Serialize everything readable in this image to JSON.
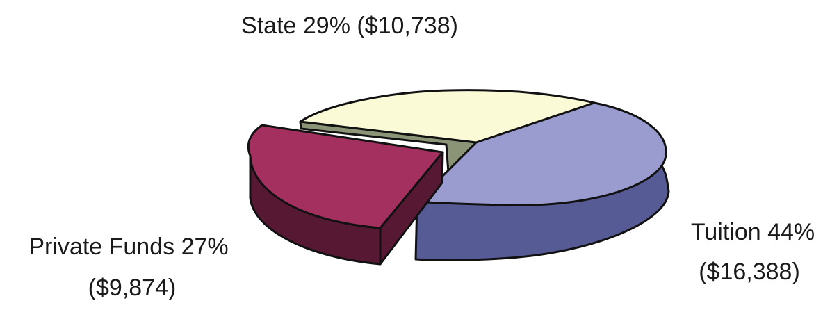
{
  "chart_data": {
    "type": "pie",
    "style": "3d-exploded",
    "title": "",
    "slices": [
      {
        "name": "Tuition",
        "percent": 44,
        "value": 16388,
        "label_line1": "Tuition 44%",
        "label_line2": "($16,388)",
        "top_color": "#9a9ccf",
        "side_color": "#565a95"
      },
      {
        "name": "Private Funds",
        "percent": 27,
        "value": 9874,
        "label_line1": "Private Funds 27%",
        "label_line2": "($9,874)",
        "top_color": "#a3305f",
        "side_color": "#571833",
        "exploded": true
      },
      {
        "name": "State",
        "percent": 29,
        "value": 10738,
        "label_line1": "State 29% ($10,738)",
        "top_color": "#fafad7",
        "side_color": "#8c9477"
      }
    ]
  }
}
